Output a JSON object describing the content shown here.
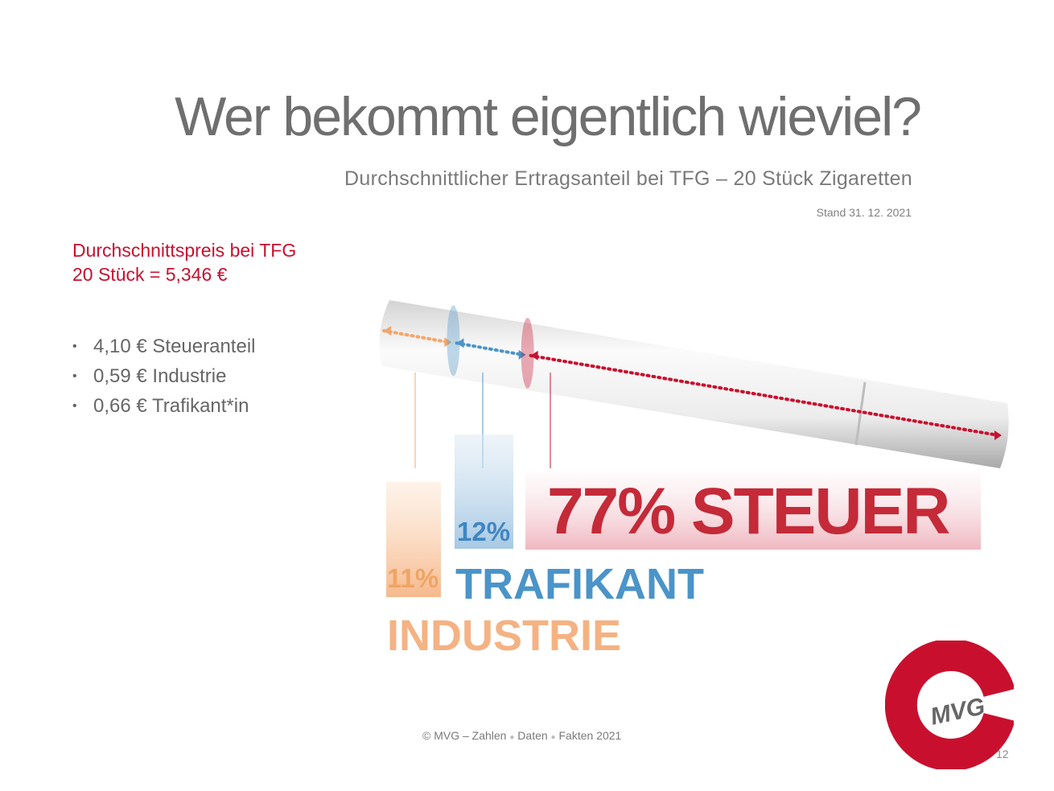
{
  "title": "Wer bekommt eigentlich wieviel?",
  "subtitle": "Durchschnittlicher Ertragsanteil bei TFG – 20 Stück Zigaretten",
  "stand": "Stand 31. 12. 2021",
  "price_box": {
    "line1": "Durchschnittspreis bei TFG",
    "line2": "20 Stück = 5,346 €"
  },
  "bullets": [
    {
      "marker": "•",
      "text": "4,10 € Steueranteil"
    },
    {
      "marker": "•",
      "text": "0,59 € Industrie"
    },
    {
      "marker": "•",
      "text": "0,66 € Trafikant*in"
    }
  ],
  "colors": {
    "industrie": "#f4a66a",
    "trafikant": "#4b95c8",
    "steuer": "#c8102e",
    "title_gray": "#6f6f6f",
    "accent_red": "#c8102e"
  },
  "chart_data": {
    "type": "bar",
    "categories": [
      "INDUSTRIE",
      "TRAFIKANT",
      "STEUER"
    ],
    "values": [
      11,
      12,
      77
    ],
    "value_labels": [
      "11%",
      "12%",
      "77% STEUER"
    ],
    "category_labels": [
      "INDUSTRIE",
      "TRAFIKANT",
      ""
    ],
    "ylim": [
      0,
      100
    ],
    "legend": "none",
    "grid": false
  },
  "footer": {
    "copyright": "© MVG – Zahlen",
    "word2": "Daten",
    "word3": "Fakten 2021",
    "sep": "●"
  },
  "logo": {
    "text": "MVG"
  },
  "page_number": "12"
}
